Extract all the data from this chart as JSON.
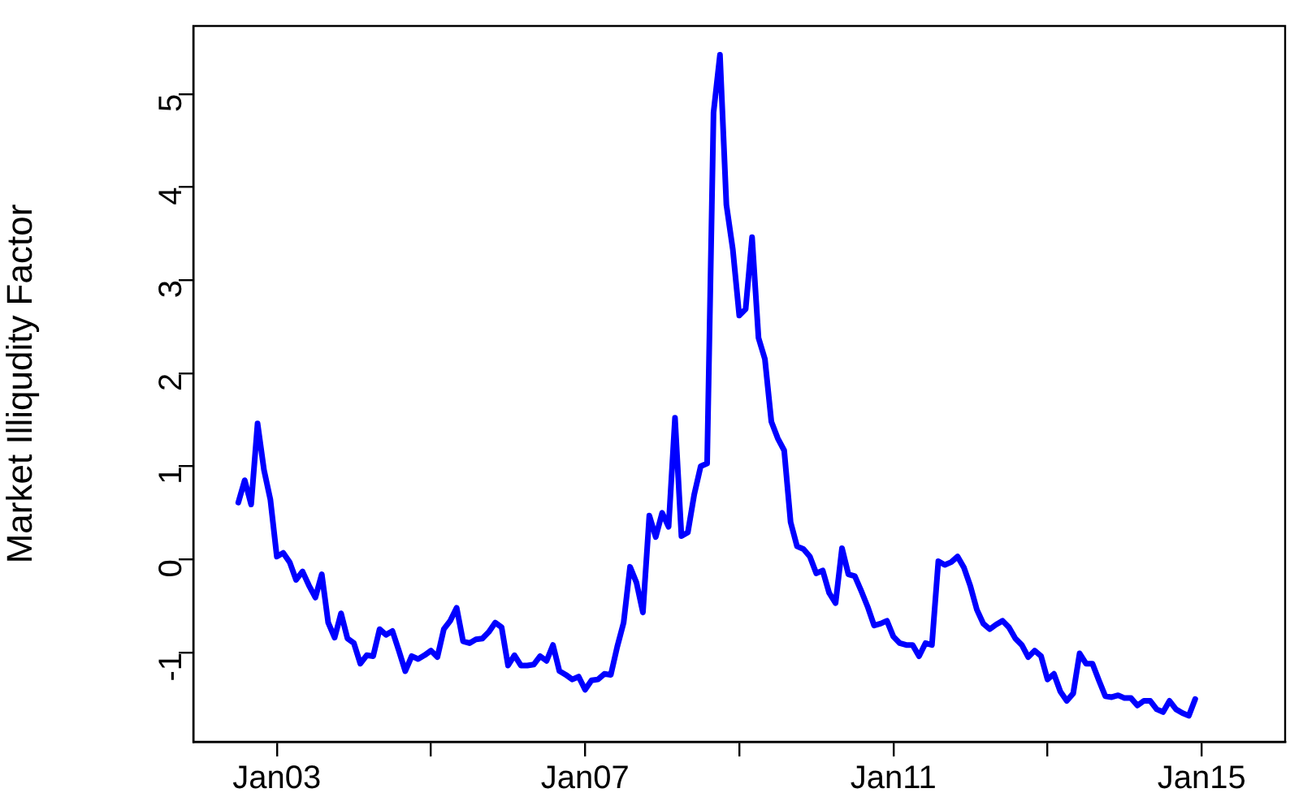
{
  "chart_data": {
    "type": "line",
    "ylabel": "Market Illiqudity Factor",
    "x": [
      "2002-07",
      "2002-08",
      "2002-09",
      "2002-10",
      "2002-11",
      "2002-12",
      "2003-01",
      "2003-02",
      "2003-03",
      "2003-04",
      "2003-05",
      "2003-06",
      "2003-07",
      "2003-08",
      "2003-09",
      "2003-10",
      "2003-11",
      "2003-12",
      "2004-01",
      "2004-02",
      "2004-03",
      "2004-04",
      "2004-05",
      "2004-06",
      "2004-07",
      "2004-08",
      "2004-09",
      "2004-10",
      "2004-11",
      "2004-12",
      "2005-01",
      "2005-02",
      "2005-03",
      "2005-04",
      "2005-05",
      "2005-06",
      "2005-07",
      "2005-08",
      "2005-09",
      "2005-10",
      "2005-11",
      "2005-12",
      "2006-01",
      "2006-02",
      "2006-03",
      "2006-04",
      "2006-05",
      "2006-06",
      "2006-07",
      "2006-08",
      "2006-09",
      "2006-10",
      "2006-11",
      "2006-12",
      "2007-01",
      "2007-02",
      "2007-03",
      "2007-04",
      "2007-05",
      "2007-06",
      "2007-07",
      "2007-08",
      "2007-09",
      "2007-10",
      "2007-11",
      "2007-12",
      "2008-01",
      "2008-02",
      "2008-03",
      "2008-04",
      "2008-05",
      "2008-06",
      "2008-07",
      "2008-08",
      "2008-09",
      "2008-10",
      "2008-11",
      "2008-12",
      "2009-01",
      "2009-02",
      "2009-03",
      "2009-04",
      "2009-05",
      "2009-06",
      "2009-07",
      "2009-08",
      "2009-09",
      "2009-10",
      "2009-11",
      "2009-12",
      "2010-01",
      "2010-02",
      "2010-03",
      "2010-04",
      "2010-05",
      "2010-06",
      "2010-07",
      "2010-08",
      "2010-09",
      "2010-10",
      "2010-11",
      "2010-12",
      "2011-01",
      "2011-02",
      "2011-03",
      "2011-04",
      "2011-05",
      "2011-06",
      "2011-07",
      "2011-08",
      "2011-09",
      "2011-10",
      "2011-11",
      "2011-12",
      "2012-01",
      "2012-02",
      "2012-03",
      "2012-04",
      "2012-05",
      "2012-06",
      "2012-07",
      "2012-08",
      "2012-09",
      "2012-10",
      "2012-11",
      "2012-12",
      "2013-01",
      "2013-02",
      "2013-03",
      "2013-04",
      "2013-05",
      "2013-06",
      "2013-07",
      "2013-08",
      "2013-09",
      "2013-10",
      "2013-11",
      "2013-12",
      "2014-01",
      "2014-02",
      "2014-03",
      "2014-04",
      "2014-05",
      "2014-06",
      "2014-07",
      "2014-08",
      "2014-09",
      "2014-10",
      "2014-11",
      "2014-12"
    ],
    "series": [
      {
        "color": "#0000ff",
        "values": [
          0.61,
          0.85,
          0.59,
          1.46,
          0.96,
          0.64,
          0.03,
          0.07,
          -0.03,
          -0.22,
          -0.13,
          -0.28,
          -0.41,
          -0.16,
          -0.68,
          -0.84,
          -0.58,
          -0.85,
          -0.9,
          -1.12,
          -1.03,
          -1.04,
          -0.75,
          -0.81,
          -0.77,
          -0.98,
          -1.2,
          -1.04,
          -1.07,
          -1.03,
          -0.98,
          -1.05,
          -0.75,
          -0.66,
          -0.52,
          -0.88,
          -0.9,
          -0.86,
          -0.85,
          -0.78,
          -0.68,
          -0.73,
          -1.14,
          -1.03,
          -1.14,
          -1.14,
          -1.13,
          -1.04,
          -1.09,
          -0.92,
          -1.2,
          -1.24,
          -1.29,
          -1.26,
          -1.4,
          -1.3,
          -1.29,
          -1.23,
          -1.24,
          -0.94,
          -0.68,
          -0.08,
          -0.25,
          -0.57,
          0.47,
          0.24,
          0.5,
          0.35,
          1.52,
          0.25,
          0.29,
          0.7,
          1.0,
          1.03,
          4.8,
          5.42,
          3.81,
          3.33,
          2.62,
          2.69,
          3.46,
          2.38,
          2.15,
          1.48,
          1.3,
          1.17,
          0.4,
          0.14,
          0.11,
          0.03,
          -0.15,
          -0.12,
          -0.36,
          -0.47,
          0.12,
          -0.16,
          -0.18,
          -0.34,
          -0.51,
          -0.71,
          -0.69,
          -0.66,
          -0.83,
          -0.9,
          -0.92,
          -0.92,
          -1.04,
          -0.9,
          -0.92,
          -0.02,
          -0.06,
          -0.03,
          0.03,
          -0.09,
          -0.29,
          -0.54,
          -0.69,
          -0.75,
          -0.7,
          -0.66,
          -0.73,
          -0.85,
          -0.92,
          -1.05,
          -0.98,
          -1.04,
          -1.29,
          -1.23,
          -1.42,
          -1.52,
          -1.44,
          -1.01,
          -1.12,
          -1.12,
          -1.3,
          -1.47,
          -1.48,
          -1.46,
          -1.49,
          -1.49,
          -1.57,
          -1.52,
          -1.52,
          -1.61,
          -1.64,
          -1.52,
          -1.61,
          -1.65,
          -1.68,
          -1.5
        ]
      }
    ],
    "xlim": [
      "2001-12",
      "2016-02"
    ],
    "xticks": [
      {
        "value": "2003-01",
        "label": "Jan03"
      },
      {
        "value": "2005-01",
        "label": null
      },
      {
        "value": "2007-01",
        "label": "Jan07"
      },
      {
        "value": "2009-01",
        "label": null
      },
      {
        "value": "2011-01",
        "label": "Jan11"
      },
      {
        "value": "2013-01",
        "label": null
      },
      {
        "value": "2015-01",
        "label": "Jan15"
      }
    ],
    "ylim": [
      -1.96,
      5.73
    ],
    "yticks": [
      -1,
      0,
      1,
      2,
      3,
      4,
      5
    ],
    "grid": false,
    "legend": false,
    "marker": "none",
    "line_style": "solid"
  }
}
